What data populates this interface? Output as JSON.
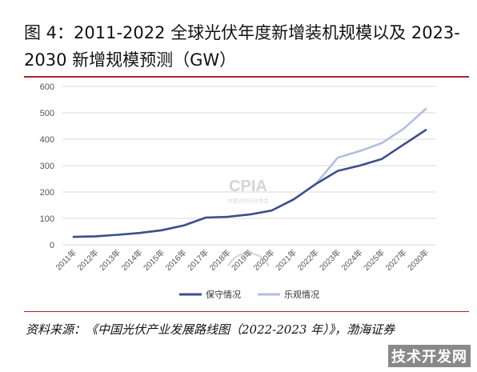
{
  "header": {
    "title": "图 4：2011-2022 全球光伏年度新增装机规模以及 2023-2030 新增规模预测（GW）"
  },
  "chart_data": {
    "type": "line",
    "categories": [
      "2011年",
      "2012年",
      "2013年",
      "2014年",
      "2015年",
      "2016年",
      "2017年",
      "2018年",
      "2019年",
      "2020年",
      "2021年",
      "2022年",
      "2023年",
      "2024年",
      "2025年",
      "2027年",
      "2030年"
    ],
    "ylim": [
      0,
      600
    ],
    "yticks": [
      "0",
      "100",
      "200",
      "300",
      "400",
      "500",
      "600"
    ],
    "grid": true,
    "legend_position": "bottom",
    "series": [
      {
        "name": "保守情况",
        "color": "#3d4f8c",
        "values": [
          30,
          32,
          38,
          45,
          55,
          73,
          103,
          106,
          115,
          130,
          172,
          230,
          280,
          300,
          325,
          380,
          435
        ]
      },
      {
        "name": "乐观情况",
        "color": "#b3bde0",
        "values": [
          30,
          32,
          38,
          45,
          55,
          73,
          103,
          106,
          115,
          130,
          172,
          230,
          330,
          355,
          385,
          440,
          515
        ]
      }
    ]
  },
  "watermark": {
    "logo_text": "CPIA",
    "logo_subtext": "中国光伏行业协会"
  },
  "source": {
    "text": "资料来源：《中国光伏产业发展路线图（2022-2023 年）》，渤海证券"
  },
  "site_watermark": "技术开发网"
}
